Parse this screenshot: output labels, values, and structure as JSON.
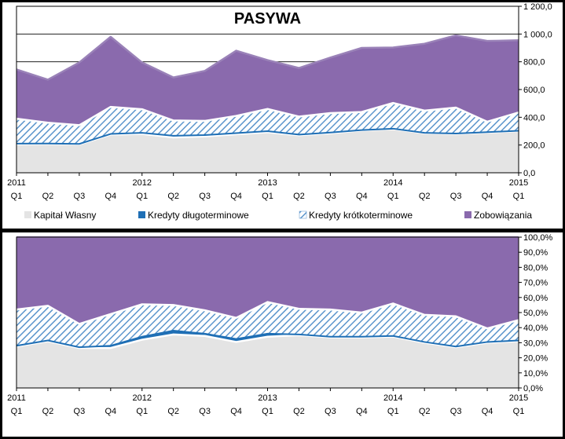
{
  "chart_data": [
    {
      "type": "area",
      "stacked": true,
      "title": "PASYWA",
      "x_periods": [
        "2011 Q1",
        "2011 Q2",
        "2011 Q3",
        "2011 Q4",
        "2012 Q1",
        "2012 Q2",
        "2012 Q3",
        "2012 Q4",
        "2013 Q1",
        "2013 Q2",
        "2013 Q3",
        "2013 Q4",
        "2014 Q1",
        "2014 Q2",
        "2014 Q3",
        "2014 Q4",
        "2015 Q1"
      ],
      "x_year_labels": [
        "2011",
        "",
        "",
        "",
        "2012",
        "",
        "",
        "",
        "2013",
        "",
        "",
        "",
        "2014",
        "",
        "",
        "",
        "2015"
      ],
      "x_quarter_labels": [
        "Q1",
        "Q2",
        "Q3",
        "Q4",
        "Q1",
        "Q2",
        "Q3",
        "Q4",
        "Q1",
        "Q2",
        "Q3",
        "Q4",
        "Q1",
        "Q2",
        "Q3",
        "Q4",
        "Q1"
      ],
      "ylim": [
        0,
        1200
      ],
      "y_ticks": [
        "0,0",
        "200,0",
        "400,0",
        "600,0",
        "800,0",
        "1 000,0",
        "1 200,0"
      ],
      "y_axis_position": "right",
      "grid": true,
      "series": [
        {
          "name": "Kapitał Własny",
          "color": "#e4e4e4",
          "values": [
            205,
            208,
            205,
            275,
            280,
            255,
            262,
            278,
            292,
            270,
            285,
            305,
            315,
            285,
            280,
            290,
            300
          ]
        },
        {
          "name": "Kredyty długoterminowe",
          "color": "#1f6fb5",
          "values": [
            5,
            3,
            3,
            5,
            8,
            12,
            10,
            8,
            8,
            5,
            5,
            3,
            3,
            3,
            3,
            3,
            3
          ]
        },
        {
          "name": "Kredyty krótkoterminowe",
          "color": "#7aa7d6",
          "pattern": "diagonal-hatch",
          "values": [
            180,
            150,
            135,
            195,
            170,
            110,
            102,
            124,
            160,
            130,
            140,
            130,
            185,
            160,
            187,
            75,
            132
          ]
        },
        {
          "name": "Zobowiązania",
          "color": "#8a6aad",
          "values": [
            355,
            310,
            452,
            505,
            337,
            310,
            360,
            470,
            352,
            350,
            400,
            462,
            400,
            482,
            520,
            582,
            520
          ]
        }
      ]
    },
    {
      "type": "area",
      "stacked": true,
      "percent": true,
      "title": "",
      "x_periods": [
        "2011 Q1",
        "2011 Q2",
        "2011 Q3",
        "2011 Q4",
        "2012 Q1",
        "2012 Q2",
        "2012 Q3",
        "2012 Q4",
        "2013 Q1",
        "2013 Q2",
        "2013 Q3",
        "2013 Q4",
        "2014 Q1",
        "2014 Q2",
        "2014 Q3",
        "2014 Q4",
        "2015 Q1"
      ],
      "x_year_labels": [
        "2011",
        "",
        "",
        "",
        "2012",
        "",
        "",
        "",
        "2013",
        "",
        "",
        "",
        "2014",
        "",
        "",
        "",
        "2015"
      ],
      "x_quarter_labels": [
        "Q1",
        "Q2",
        "Q3",
        "Q4",
        "Q1",
        "Q2",
        "Q3",
        "Q4",
        "Q1",
        "Q2",
        "Q3",
        "Q4",
        "Q1",
        "Q2",
        "Q3",
        "Q4",
        "Q1"
      ],
      "ylim": [
        0,
        100
      ],
      "y_ticks": [
        "0,0%",
        "10,0%",
        "20,0%",
        "30,0%",
        "40,0%",
        "50,0%",
        "60,0%",
        "70,0%",
        "80,0%",
        "90,0%",
        "100,0%"
      ],
      "y_axis_position": "right",
      "grid": true,
      "series": [
        {
          "name": "Kapitał Własny",
          "color": "#e4e4e4",
          "values": [
            27.5,
            31.0,
            26.5,
            26.5,
            32.0,
            35.5,
            34.5,
            30.5,
            34.0,
            35.0,
            33.5,
            33.5,
            34.0,
            30.0,
            27.0,
            30.0,
            31.0
          ]
        },
        {
          "name": "Kredyty długoterminowe",
          "color": "#1f6fb5",
          "values": [
            0.5,
            0.5,
            0.5,
            1.5,
            2.0,
            2.5,
            1.5,
            2.0,
            2.0,
            0.5,
            0.5,
            0.5,
            0.5,
            0.5,
            0.5,
            0.5,
            0.5
          ]
        },
        {
          "name": "Kredyty krótkoterminowe",
          "color": "#7aa7d6",
          "pattern": "diagonal-hatch",
          "values": [
            24.0,
            23.0,
            15.5,
            21.0,
            21.5,
            17.0,
            15.5,
            14.0,
            21.0,
            17.0,
            18.0,
            16.0,
            21.5,
            18.0,
            20.0,
            9.0,
            13.5
          ]
        },
        {
          "name": "Zobowiązania",
          "color": "#8a6aad",
          "values": [
            48.0,
            45.5,
            57.5,
            51.0,
            44.5,
            45.0,
            48.5,
            53.5,
            43.0,
            47.5,
            48.0,
            50.0,
            44.0,
            51.5,
            52.5,
            60.5,
            55.0
          ]
        }
      ]
    }
  ]
}
